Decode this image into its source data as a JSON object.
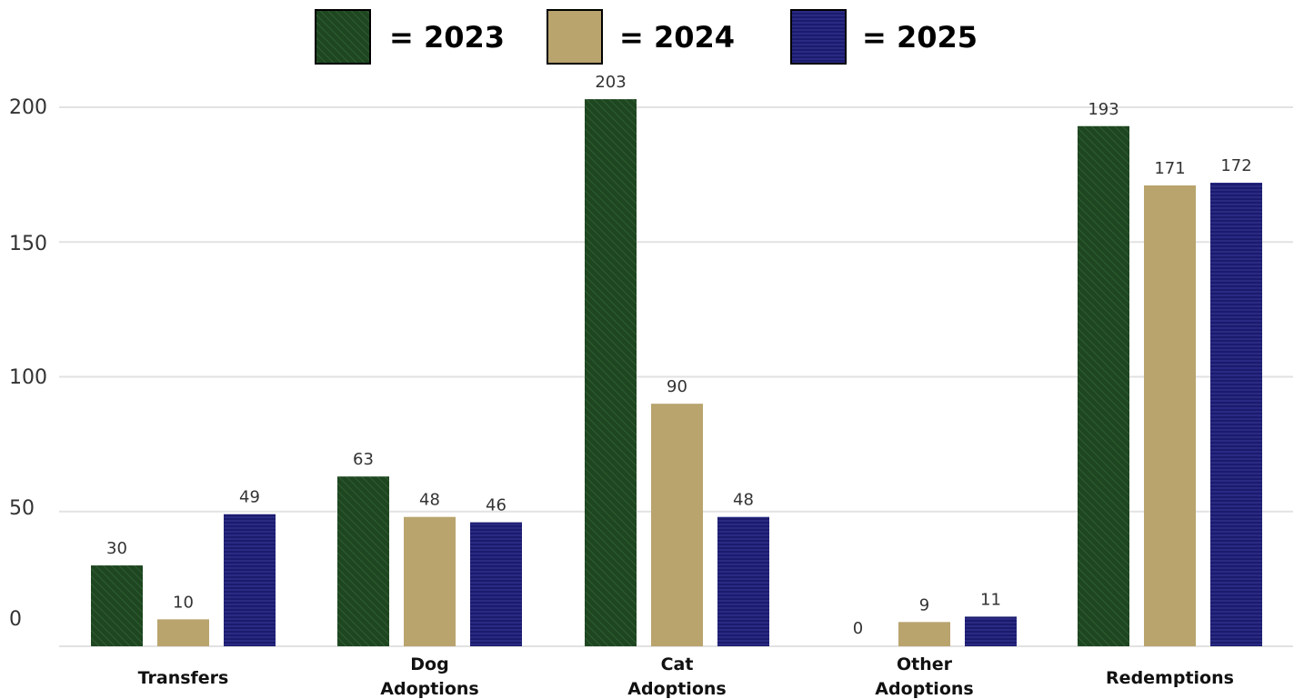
{
  "chart_data": {
    "type": "bar",
    "title": "",
    "xlabel": "",
    "ylabel": "",
    "ylim": [
      0,
      200
    ],
    "yticks": [
      0,
      50,
      100,
      150,
      200
    ],
    "grid": true,
    "legend_position": "top-center",
    "categories": [
      [
        "Transfers"
      ],
      [
        "Dog",
        "Adoptions"
      ],
      [
        "Cat",
        "Adoptions"
      ],
      [
        "Other",
        "Adoptions"
      ],
      [
        "Redemptions"
      ]
    ],
    "series": [
      {
        "name": "= 2023",
        "color": "#1e4620",
        "pattern": "diagonal-hatch",
        "values": [
          30,
          63,
          203,
          0,
          193
        ]
      },
      {
        "name": "= 2024",
        "color": "#b9a46e",
        "pattern": "solid",
        "values": [
          10,
          48,
          90,
          9,
          171
        ]
      },
      {
        "name": "= 2025",
        "color": "#1b1b6e",
        "pattern": "horizontal-lines",
        "values": [
          49,
          46,
          48,
          11,
          172
        ]
      }
    ]
  }
}
